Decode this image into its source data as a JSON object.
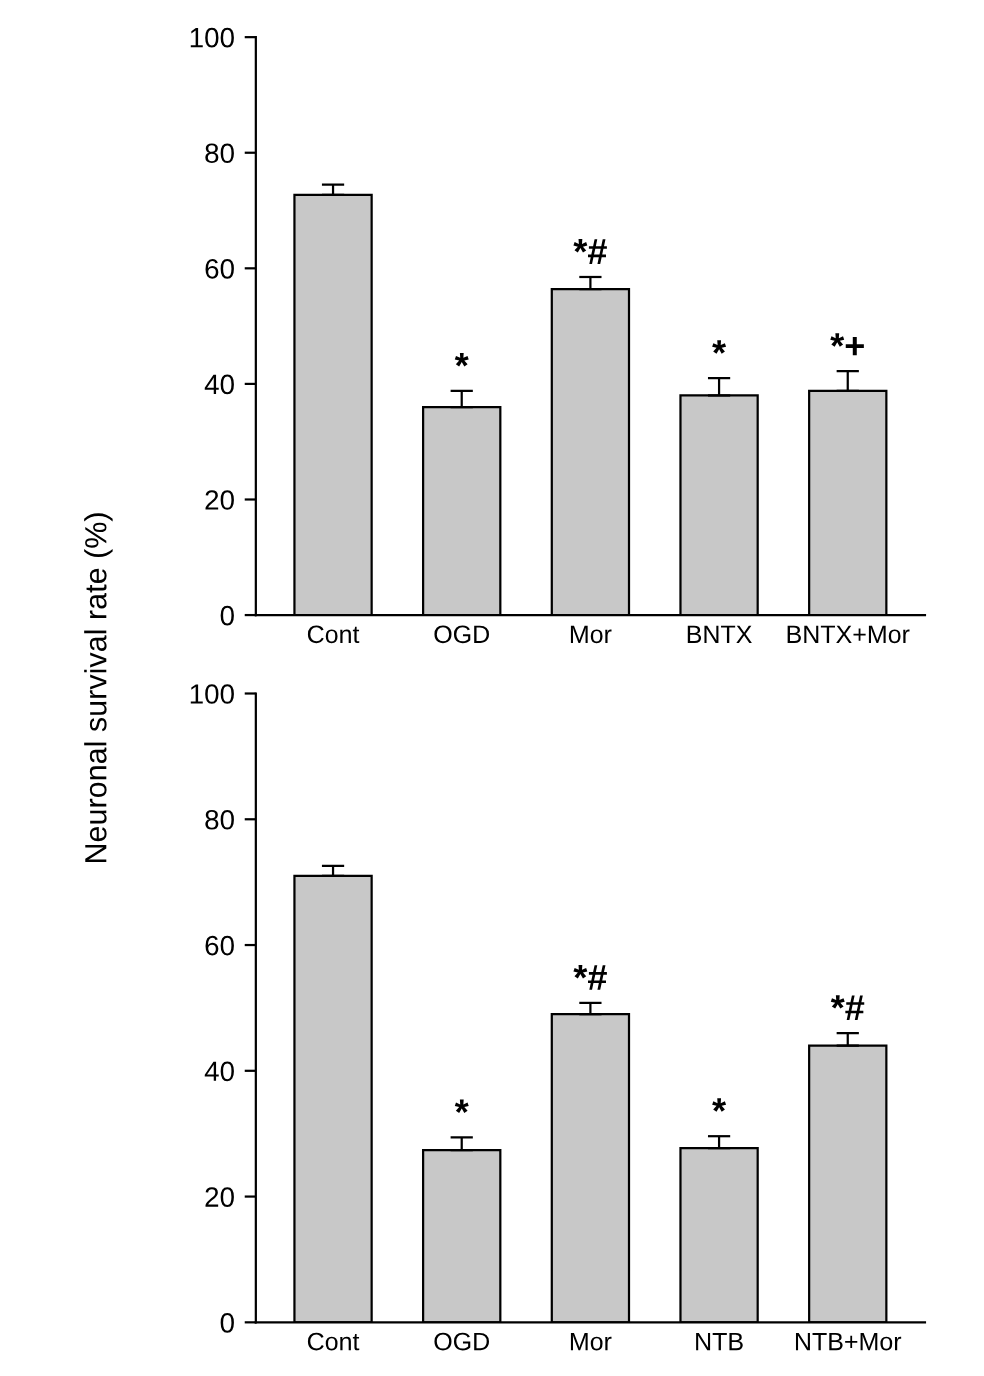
{
  "chart_data": [
    {
      "type": "bar",
      "ylabel": "Neuronal survival rate (%)",
      "categories": [
        "Cont",
        "OGD",
        "Mor",
        "BNTX",
        "BNTX+Mor"
      ],
      "values": [
        72.7,
        36,
        56.4,
        38,
        38.8
      ],
      "errors": [
        1.8,
        2.8,
        2.1,
        3,
        3.4
      ],
      "color": "#c8c8c8",
      "ylim": [
        0,
        100
      ],
      "yticks": [
        0,
        20,
        40,
        60,
        80,
        100
      ],
      "grid": false,
      "annotations": [
        {
          "text": "*",
          "x": "OGD",
          "y": 38.8
        },
        {
          "text": "*#",
          "x": "Mor",
          "y": 58.5
        },
        {
          "text": "*",
          "x": "BNTX",
          "y": 41
        },
        {
          "text": "*+",
          "x": "BNTX+Mor",
          "y": 42.2
        }
      ]
    },
    {
      "type": "bar",
      "categories": [
        "Cont",
        "OGD",
        "Mor",
        "NTB",
        "NTB+Mor"
      ],
      "values": [
        71,
        27.4,
        49,
        27.7,
        44
      ],
      "errors": [
        1.6,
        2,
        1.8,
        1.9,
        2
      ],
      "color": "#c8c8c8",
      "ylim": [
        0,
        100
      ],
      "yticks": [
        0,
        20,
        40,
        60,
        80,
        100
      ],
      "grid": false,
      "annotations": [
        {
          "text": "*",
          "x": "OGD",
          "y": 29.4
        },
        {
          "text": "*#",
          "x": "Mor",
          "y": 50.8
        },
        {
          "text": "*",
          "x": "NTB",
          "y": 29.6
        },
        {
          "text": "*#",
          "x": "NTB+Mor",
          "y": 46
        }
      ]
    }
  ]
}
